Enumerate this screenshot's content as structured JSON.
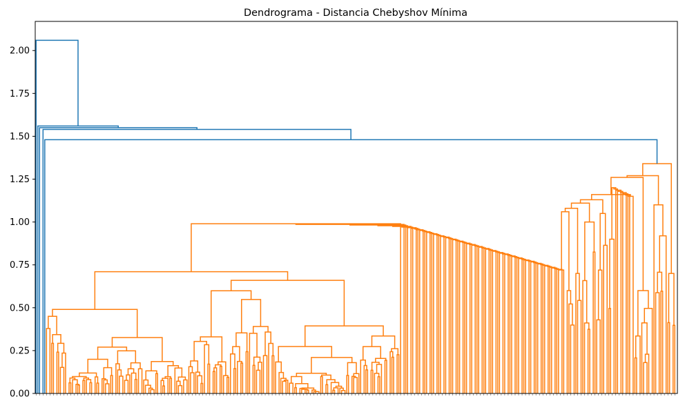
{
  "chart_data": {
    "type": "dendrogram",
    "title": "Dendrograma - Distancia Chebyshov Mínima",
    "xlabel": "",
    "ylabel": "",
    "ylim": [
      0,
      2.17
    ],
    "yticks": [
      0.0,
      0.25,
      0.5,
      0.75,
      1.0,
      1.25,
      1.5,
      1.75,
      2.0
    ],
    "ytick_labels": [
      "0.00",
      "0.25",
      "0.50",
      "0.75",
      "1.00",
      "1.25",
      "1.50",
      "1.75",
      "2.00"
    ],
    "grid": false,
    "legend": "none",
    "leaf_count": 370,
    "colors": {
      "above_threshold": "#1f77b4",
      "cluster": "#ff7f0e"
    },
    "top_merges": [
      {
        "height": 2.06,
        "color": "#1f77b4"
      },
      {
        "height": 1.56,
        "color": "#1f77b4"
      },
      {
        "height": 1.55,
        "color": "#1f77b4"
      },
      {
        "height": 1.54,
        "color": "#1f77b4"
      },
      {
        "height": 1.48,
        "color": "#1f77b4"
      },
      {
        "height": 1.34,
        "color": "#ff7f0e"
      },
      {
        "height": 1.27,
        "color": "#ff7f0e"
      },
      {
        "height": 1.26,
        "color": "#ff7f0e"
      },
      {
        "height": 1.22,
        "color": "#ff7f0e"
      },
      {
        "height": 1.16,
        "color": "#ff7f0e"
      },
      {
        "height": 1.13,
        "color": "#ff7f0e"
      },
      {
        "height": 1.11,
        "color": "#ff7f0e"
      },
      {
        "height": 1.08,
        "color": "#ff7f0e"
      },
      {
        "height": 1.06,
        "color": "#ff7f0e"
      },
      {
        "height": 0.71,
        "color": "#ff7f0e"
      },
      {
        "height": 0.49,
        "color": "#ff7f0e"
      }
    ]
  }
}
